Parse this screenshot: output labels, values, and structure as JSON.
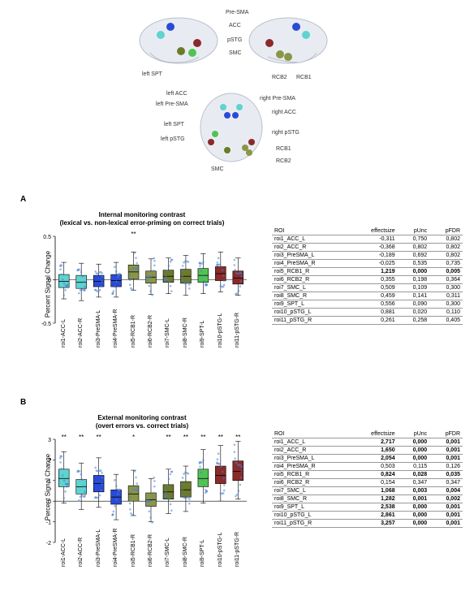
{
  "brain": {
    "labels_left": [
      "Pre-SMA",
      "ACC",
      "pSTG",
      "SMC",
      "left SPT"
    ],
    "labels_right": [
      "RCB2",
      "RCB1"
    ],
    "labels_top": [
      "left ACC",
      "left Pre-SMA",
      "left SPT",
      "left pSTG",
      "SMC",
      "right Pre-SMA",
      "right ACC",
      "right pSTG",
      "RCB1",
      "RCB2"
    ],
    "node_colors": {
      "ACC": "#5fd3d0",
      "PreSMA": "#2a4bd7",
      "RCB": "#8b9645",
      "SMC": "#6d7a2a",
      "SPT": "#52c352",
      "pSTG": "#8b2a2a"
    },
    "brain_fill": "#e8ecf2",
    "brain_stroke": "#b8c0cc"
  },
  "panelA": {
    "tag": "A",
    "title_line1": "Internal monitoring contrast",
    "title_line2": "(lexical vs. non-lexical error-priming on correct trials)",
    "ylabel": "Percent Signal Change",
    "ylim": [
      -0.5,
      0.5
    ],
    "yticks": [
      -0.5,
      0,
      0.5
    ],
    "categories": [
      "roi1-ACC-L",
      "roi2-ACC-R",
      "roi3-PreSMA-L",
      "roi4-PreSMA-R",
      "roi5-RCB1-R",
      "roi6-RCB2-R",
      "roi7-SMC-L",
      "roi8-SMC-R",
      "roi9-SPT-L",
      "roi10-pSTG-L",
      "roi11-pSTG-R"
    ],
    "colors": [
      "#5fd3d0",
      "#5fd3d0",
      "#2a4bd7",
      "#2a4bd7",
      "#8b9645",
      "#8b9645",
      "#6d7a2a",
      "#6d7a2a",
      "#52c352",
      "#8b2a2a",
      "#8b2a2a"
    ],
    "medians": [
      -0.02,
      -0.03,
      -0.02,
      -0.01,
      0.09,
      0.03,
      0.04,
      0.04,
      0.05,
      0.07,
      0.02
    ],
    "q1": [
      -0.09,
      -0.1,
      -0.08,
      -0.08,
      0.01,
      -0.04,
      -0.03,
      -0.04,
      -0.03,
      -0.01,
      -0.05
    ],
    "q3": [
      0.06,
      0.05,
      0.05,
      0.06,
      0.17,
      0.1,
      0.11,
      0.12,
      0.13,
      0.15,
      0.1
    ],
    "whisker_lo": [
      -0.22,
      -0.24,
      -0.2,
      -0.2,
      -0.12,
      -0.17,
      -0.16,
      -0.18,
      -0.16,
      -0.14,
      -0.18
    ],
    "whisker_hi": [
      0.2,
      0.19,
      0.18,
      0.2,
      0.32,
      0.24,
      0.25,
      0.28,
      0.3,
      0.32,
      0.25
    ],
    "sig": [
      "",
      "",
      "",
      "",
      "**",
      "",
      "",
      "",
      "",
      "",
      ""
    ],
    "point_color": "#4a7fd4",
    "table": {
      "columns": [
        "ROI",
        "effectsize",
        "pUnc",
        "pFDR"
      ],
      "rows": [
        [
          "roi1_ACC_L",
          "-0,311",
          "0,750",
          "0,802"
        ],
        [
          "roi2_ACC_R",
          "-0,368",
          "0,802",
          "0,802"
        ],
        [
          "roi3_PreSMA_L",
          "-0,189",
          "0,692",
          "0,802"
        ],
        [
          "roi4_PreSMA_R",
          "-0,025",
          "0,535",
          "0,735"
        ],
        [
          "roi5_RCB1_R",
          "1,219",
          "0,000",
          "0,005"
        ],
        [
          "roi6_RCB2_R",
          "0,355",
          "0,198",
          "0,364"
        ],
        [
          "roi7_SMC_L",
          "0,509",
          "0,109",
          "0,300"
        ],
        [
          "roi8_SMC_R",
          "0,459",
          "0,141",
          "0,311"
        ],
        [
          "roi9_SPT_L",
          "0,556",
          "0,090",
          "0,300"
        ],
        [
          "roi10_pSTG_L",
          "0,881",
          "0,020",
          "0,110"
        ],
        [
          "roi11_pSTG_R",
          "0,261",
          "0,258",
          "0,405"
        ]
      ],
      "bold_rows": [
        4
      ]
    }
  },
  "panelB": {
    "tag": "B",
    "title_line1": "External monitoring contrast",
    "title_line2": "(overt errors vs. correct trials)",
    "ylabel": "Percent Signal Change",
    "ylim": [
      -2,
      3
    ],
    "yticks": [
      -2,
      -1,
      0,
      1,
      2,
      3
    ],
    "categories": [
      "roi1-ACC-L",
      "roi2-ACC-R",
      "roi3-PreSMA-L",
      "roi4-PreSMA-R",
      "roi5-RCB1-R",
      "roi6-RCB2-R",
      "roi7-SMC-L",
      "roi8-SMC-R",
      "roi9-SPT-L",
      "roi10-pSTG-L",
      "roi11-pSTG-R"
    ],
    "colors": [
      "#5fd3d0",
      "#5fd3d0",
      "#2a4bd7",
      "#2a4bd7",
      "#8b9645",
      "#8b9645",
      "#6d7a2a",
      "#6d7a2a",
      "#52c352",
      "#8b2a2a",
      "#8b2a2a"
    ],
    "medians": [
      1.1,
      0.7,
      0.85,
      0.2,
      0.35,
      0.07,
      0.45,
      0.55,
      1.1,
      1.25,
      1.45
    ],
    "q1": [
      0.7,
      0.35,
      0.45,
      -0.15,
      0.0,
      -0.25,
      0.1,
      0.2,
      0.7,
      0.85,
      1.0
    ],
    "q3": [
      1.55,
      1.05,
      1.25,
      0.55,
      0.75,
      0.4,
      0.8,
      0.95,
      1.55,
      1.7,
      1.95
    ],
    "whisker_lo": [
      -0.1,
      -0.4,
      -0.3,
      -0.9,
      -0.7,
      -1.0,
      -0.6,
      -0.5,
      -0.1,
      0.0,
      0.1
    ],
    "whisker_hi": [
      2.4,
      1.85,
      2.1,
      1.3,
      1.5,
      1.1,
      1.55,
      1.7,
      2.5,
      2.7,
      2.9
    ],
    "sig": [
      "**",
      "**",
      "**",
      "",
      "*",
      "",
      "**",
      "**",
      "**",
      "**",
      "**"
    ],
    "point_color": "#4a7fd4",
    "table": {
      "columns": [
        "ROI",
        "effectsize",
        "pUnc",
        "pFDR"
      ],
      "rows": [
        [
          "roi1_ACC_L",
          "2,717",
          "0,000",
          "0,001"
        ],
        [
          "roi2_ACC_R",
          "1,650",
          "0,000",
          "0,001"
        ],
        [
          "roi3_PreSMA_L",
          "2,054",
          "0,000",
          "0,001"
        ],
        [
          "roi4_PreSMA_R",
          "0,503",
          "0,115",
          "0,126"
        ],
        [
          "roi5_RCB1_R",
          "0,824",
          "0,028",
          "0,035"
        ],
        [
          "roi6_RCB2_R",
          "0,154",
          "0,347",
          "0,347"
        ],
        [
          "roi7_SMC_L",
          "1,068",
          "0,003",
          "0,004"
        ],
        [
          "roi8_SMC_R",
          "1,282",
          "0,001",
          "0,002"
        ],
        [
          "roi9_SPT_L",
          "2,538",
          "0,000",
          "0,001"
        ],
        [
          "roi10_pSTG_L",
          "2,861",
          "0,000",
          "0,001"
        ],
        [
          "roi11_pSTG_R",
          "3,257",
          "0,000",
          "0,001"
        ]
      ],
      "bold_rows": [
        0,
        1,
        2,
        4,
        6,
        7,
        8,
        9,
        10
      ]
    }
  }
}
